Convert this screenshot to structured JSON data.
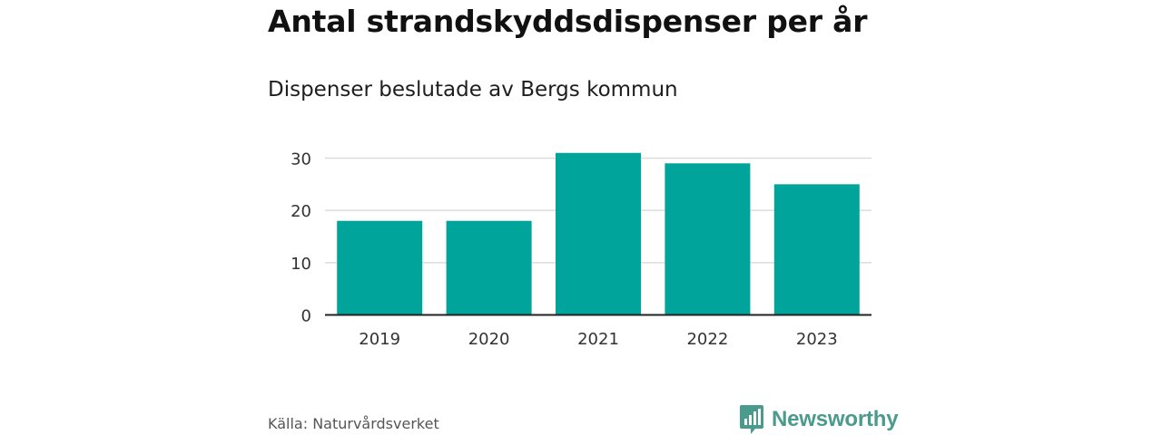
{
  "header": {
    "title": "Antal strandskyddsdispenser per år",
    "subtitle": "Dispenser beslutade av Bergs kommun"
  },
  "footer": {
    "source": "Källa: Naturvårdsverket",
    "brand": "Newsworthy"
  },
  "colors": {
    "bar": "#00a49a",
    "grid": "#dcdcdc",
    "axis": "#222222",
    "brand": "#4a9a8e"
  },
  "chart_data": {
    "type": "bar",
    "title": "Antal strandskyddsdispenser per år",
    "subtitle": "Dispenser beslutade av Bergs kommun",
    "categories": [
      "2019",
      "2020",
      "2021",
      "2022",
      "2023"
    ],
    "values": [
      18,
      18,
      31,
      29,
      25
    ],
    "xlabel": "",
    "ylabel": "",
    "ylim": [
      0,
      30
    ],
    "yticks": [
      0,
      10,
      20,
      30
    ],
    "grid": true
  }
}
